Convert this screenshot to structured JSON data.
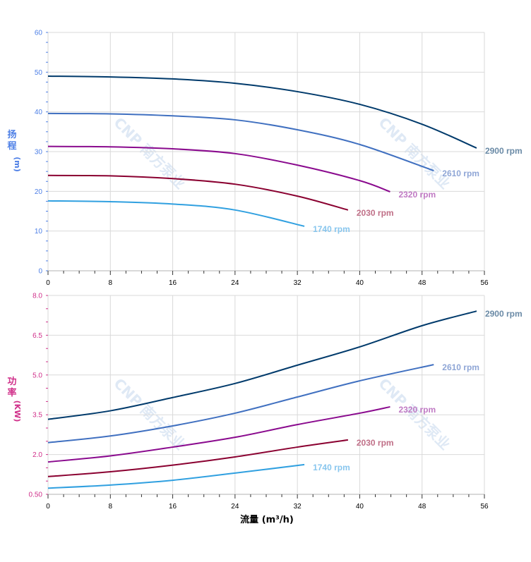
{
  "watermark": "CNP 南方泵业",
  "chart_data": [
    {
      "type": "line",
      "ylabel_lines": [
        "扬",
        "程",
        "(m)"
      ],
      "xlabel": "",
      "xlim": [
        0,
        56
      ],
      "ylim": [
        0,
        60
      ],
      "xticks": [
        0,
        8,
        16,
        24,
        32,
        40,
        48,
        56
      ],
      "xtick_labels": [
        "0",
        "8",
        "16",
        "24",
        "32",
        "40",
        "48",
        "56"
      ],
      "yticks": [
        0,
        10,
        20,
        30,
        40,
        50,
        60
      ],
      "ytick_labels": [
        "0",
        "10",
        "20",
        "30",
        "40",
        "50",
        "60"
      ],
      "grid": true,
      "axis_color": "#4d7fe6",
      "series": [
        {
          "name": "2900 rpm",
          "color": "#003a6b",
          "label_color": "#6a8aa6",
          "x": [
            0,
            8,
            16,
            24,
            32,
            40,
            48,
            55
          ],
          "y": [
            49,
            48.8,
            48.3,
            47.2,
            45.1,
            41.9,
            36.9,
            30.9
          ]
        },
        {
          "name": "2610 rpm",
          "color": "#4070c0",
          "label_color": "#8fa6d6",
          "x": [
            0,
            8,
            16,
            24,
            32,
            40,
            49.5
          ],
          "y": [
            39.6,
            39.5,
            39,
            38,
            35.5,
            31.8,
            25.2
          ]
        },
        {
          "name": "2320 rpm",
          "color": "#8a0a8e",
          "label_color": "#c07ac4",
          "x": [
            0,
            8,
            16,
            24,
            32,
            40,
            43.9
          ],
          "y": [
            31.3,
            31.2,
            30.7,
            29.5,
            26.6,
            22.7,
            19.9
          ]
        },
        {
          "name": "2030 rpm",
          "color": "#8a0030",
          "label_color": "#c07088",
          "x": [
            0,
            8,
            16,
            24,
            32,
            38.5
          ],
          "y": [
            24,
            23.9,
            23.2,
            21.8,
            18.8,
            15.3
          ]
        },
        {
          "name": "1740 rpm",
          "color": "#30a0e0",
          "label_color": "#88c6ee",
          "x": [
            0,
            8,
            16,
            24,
            32.9
          ],
          "y": [
            17.6,
            17.4,
            16.8,
            15.3,
            11.2
          ]
        }
      ]
    },
    {
      "type": "line",
      "ylabel_lines": [
        "功",
        "率",
        "(KW)"
      ],
      "xlabel": "流量 (m³/h)",
      "xlim": [
        0,
        56
      ],
      "ylim": [
        0.5,
        8.0
      ],
      "xticks": [
        0,
        8,
        16,
        24,
        32,
        40,
        48,
        56
      ],
      "xtick_labels": [
        "0",
        "8",
        "16",
        "24",
        "32",
        "40",
        "48",
        "56"
      ],
      "yticks": [
        0.5,
        2.0,
        3.5,
        5.0,
        6.5,
        8.0
      ],
      "ytick_labels": [
        "0.50",
        "2.0",
        "3.5",
        "5.0",
        "6.5",
        "8.0"
      ],
      "grid": true,
      "axis_color": "#d0308a",
      "series": [
        {
          "name": "2900 rpm",
          "color": "#003a6b",
          "label_color": "#6a8aa6",
          "x": [
            0,
            8,
            16,
            24,
            32,
            40,
            48,
            55
          ],
          "y": [
            3.33,
            3.65,
            4.15,
            4.68,
            5.37,
            6.06,
            6.86,
            7.41
          ]
        },
        {
          "name": "2610 rpm",
          "color": "#4070c0",
          "label_color": "#8fa6d6",
          "x": [
            0,
            8,
            16,
            24,
            32,
            40,
            49.5
          ],
          "y": [
            2.45,
            2.7,
            3.08,
            3.56,
            4.17,
            4.78,
            5.39
          ]
        },
        {
          "name": "2320 rpm",
          "color": "#8a0a8e",
          "label_color": "#c07ac4",
          "x": [
            0,
            8,
            16,
            24,
            32,
            40,
            43.9
          ],
          "y": [
            1.72,
            1.95,
            2.28,
            2.65,
            3.13,
            3.56,
            3.8
          ]
        },
        {
          "name": "2030 rpm",
          "color": "#8a0030",
          "label_color": "#c07088",
          "x": [
            0,
            8,
            16,
            24,
            32,
            38.5
          ],
          "y": [
            1.17,
            1.35,
            1.6,
            1.91,
            2.28,
            2.55
          ]
        },
        {
          "name": "1740 rpm",
          "color": "#30a0e0",
          "label_color": "#88c6ee",
          "x": [
            0,
            8,
            16,
            24,
            32.9
          ],
          "y": [
            0.73,
            0.85,
            1.03,
            1.3,
            1.62
          ]
        }
      ]
    }
  ]
}
